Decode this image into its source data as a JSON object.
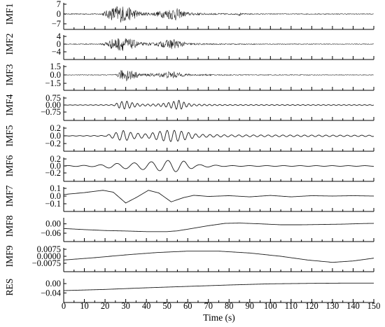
{
  "chart_data": {
    "type": "line",
    "xlabel": "Time (s)",
    "xlim": [
      0,
      150
    ],
    "xticks": [
      "0",
      "10",
      "20",
      "30",
      "40",
      "50",
      "60",
      "70",
      "80",
      "90",
      "100",
      "110",
      "120",
      "130",
      "140",
      "150"
    ],
    "grid": false,
    "panels": [
      {
        "name": "IMF1",
        "ylim": [
          -7,
          7
        ],
        "yticks": [
          "7",
          "0",
          "−7"
        ],
        "pattern": "noise",
        "env": [
          [
            0,
            0.04
          ],
          [
            18,
            0.06
          ],
          [
            24,
            0.75
          ],
          [
            26,
            0.9
          ],
          [
            29,
            0.85
          ],
          [
            33,
            0.6
          ],
          [
            38,
            0.18
          ],
          [
            42,
            0.12
          ],
          [
            47,
            0.35
          ],
          [
            51,
            0.55
          ],
          [
            54,
            0.7
          ],
          [
            57,
            0.35
          ],
          [
            61,
            0.15
          ],
          [
            70,
            0.08
          ],
          [
            84,
            0.06
          ],
          [
            85,
            0.22
          ],
          [
            86,
            0.06
          ],
          [
            100,
            0.04
          ],
          [
            150,
            0.04
          ]
        ]
      },
      {
        "name": "IMF2",
        "ylim": [
          -4,
          4
        ],
        "yticks": [
          "4",
          "0",
          "−4"
        ],
        "pattern": "noise",
        "env": [
          [
            0,
            0.05
          ],
          [
            18,
            0.06
          ],
          [
            24,
            0.75
          ],
          [
            27,
            0.9
          ],
          [
            30,
            0.85
          ],
          [
            34,
            0.55
          ],
          [
            38,
            0.2
          ],
          [
            44,
            0.18
          ],
          [
            49,
            0.5
          ],
          [
            53,
            0.72
          ],
          [
            56,
            0.45
          ],
          [
            60,
            0.15
          ],
          [
            70,
            0.08
          ],
          [
            100,
            0.05
          ],
          [
            150,
            0.04
          ]
        ]
      },
      {
        "name": "IMF3",
        "ylim": [
          -1.5,
          1.5
        ],
        "yticks": [
          "1.5",
          "0.0",
          "−1.5"
        ],
        "pattern": "noise",
        "env": [
          [
            0,
            0.03
          ],
          [
            25,
            0.05
          ],
          [
            28,
            0.6
          ],
          [
            31,
            0.75
          ],
          [
            34,
            0.5
          ],
          [
            37,
            0.15
          ],
          [
            45,
            0.2
          ],
          [
            50,
            0.4
          ],
          [
            53,
            0.45
          ],
          [
            57,
            0.2
          ],
          [
            62,
            0.1
          ],
          [
            80,
            0.05
          ],
          [
            150,
            0.03
          ]
        ]
      },
      {
        "name": "IMF4",
        "ylim": [
          -0.75,
          0.75
        ],
        "yticks": [
          "0.75",
          "0.00",
          "−0.75"
        ],
        "pattern": "wave",
        "period": 2.5,
        "env": [
          [
            0,
            0.02
          ],
          [
            24,
            0.05
          ],
          [
            27,
            0.45
          ],
          [
            30,
            0.6
          ],
          [
            33,
            0.35
          ],
          [
            38,
            0.12
          ],
          [
            45,
            0.15
          ],
          [
            50,
            0.3
          ],
          [
            53,
            0.5
          ],
          [
            56,
            0.7
          ],
          [
            59,
            0.3
          ],
          [
            63,
            0.12
          ],
          [
            80,
            0.06
          ],
          [
            150,
            0.04
          ]
        ]
      },
      {
        "name": "IMF5",
        "ylim": [
          -0.2,
          0.2
        ],
        "yticks": [
          "0.2",
          "0.0",
          "−0.2"
        ],
        "pattern": "wave",
        "period": 3.5,
        "env": [
          [
            0,
            0.02
          ],
          [
            20,
            0.05
          ],
          [
            25,
            0.4
          ],
          [
            29,
            0.7
          ],
          [
            33,
            0.4
          ],
          [
            40,
            0.25
          ],
          [
            47,
            0.6
          ],
          [
            51,
            0.75
          ],
          [
            55,
            0.7
          ],
          [
            60,
            0.45
          ],
          [
            65,
            0.2
          ],
          [
            80,
            0.12
          ],
          [
            120,
            0.1
          ],
          [
            150,
            0.08
          ]
        ]
      },
      {
        "name": "IMF6",
        "ylim": [
          -0.2,
          0.2
        ],
        "yticks": [
          "0.2",
          "0.0",
          "−0.2"
        ],
        "pattern": "wave",
        "period": 8,
        "env": [
          [
            0,
            0.05
          ],
          [
            15,
            0.1
          ],
          [
            24,
            0.35
          ],
          [
            32,
            0.4
          ],
          [
            40,
            0.55
          ],
          [
            47,
            0.7
          ],
          [
            53,
            0.85
          ],
          [
            58,
            0.7
          ],
          [
            64,
            0.2
          ],
          [
            80,
            0.05
          ],
          [
            150,
            0.04
          ]
        ]
      },
      {
        "name": "IMF7",
        "ylim": [
          -0.1,
          0.1
        ],
        "yticks": [
          "0.1",
          "0.0",
          "−0.1"
        ],
        "pattern": "curve",
        "points": [
          [
            0,
            0.02
          ],
          [
            10,
            0.045
          ],
          [
            19,
            0.075
          ],
          [
            24,
            0.05
          ],
          [
            30,
            -0.09
          ],
          [
            35,
            -0.02
          ],
          [
            41,
            0.075
          ],
          [
            46,
            0.04
          ],
          [
            52,
            -0.075
          ],
          [
            58,
            -0.02
          ],
          [
            63,
            0.01
          ],
          [
            70,
            -0.005
          ],
          [
            80,
            0.005
          ],
          [
            90,
            -0.01
          ],
          [
            100,
            0.008
          ],
          [
            110,
            -0.01
          ],
          [
            120,
            0.005
          ],
          [
            130,
            0.0
          ],
          [
            140,
            0.005
          ],
          [
            150,
            0.0
          ]
        ]
      },
      {
        "name": "IMF8",
        "ylim": [
          -0.06,
          0.03
        ],
        "yticks": [
          "0.00",
          "−0.06"
        ],
        "pattern": "curve",
        "points": [
          [
            0,
            -0.03
          ],
          [
            10,
            -0.037
          ],
          [
            20,
            -0.043
          ],
          [
            30,
            -0.046
          ],
          [
            40,
            -0.05
          ],
          [
            50,
            -0.05
          ],
          [
            55,
            -0.045
          ],
          [
            62,
            -0.03
          ],
          [
            70,
            -0.012
          ],
          [
            78,
            0.003
          ],
          [
            85,
            0.005
          ],
          [
            95,
            0.0
          ],
          [
            105,
            -0.006
          ],
          [
            115,
            -0.006
          ],
          [
            125,
            -0.004
          ],
          [
            135,
            -0.002
          ],
          [
            145,
            0.002
          ],
          [
            150,
            0.003
          ]
        ]
      },
      {
        "name": "IMF9",
        "ylim": [
          -0.0075,
          0.0075
        ],
        "yticks": [
          "0.0075",
          "0.0000",
          "−0.0075"
        ],
        "pattern": "curve",
        "points": [
          [
            0,
            -0.004
          ],
          [
            15,
            -0.0015
          ],
          [
            30,
            0.0015
          ],
          [
            45,
            0.004
          ],
          [
            60,
            0.0055
          ],
          [
            75,
            0.0055
          ],
          [
            90,
            0.0035
          ],
          [
            105,
            0.0
          ],
          [
            118,
            -0.004
          ],
          [
            130,
            -0.0065
          ],
          [
            140,
            -0.005
          ],
          [
            150,
            -0.002
          ]
        ]
      },
      {
        "name": "RES",
        "ylim": [
          -0.045,
          0.015
        ],
        "yticks": [
          "0.00",
          "−0.04"
        ],
        "pattern": "curve",
        "points": [
          [
            0,
            -0.03
          ],
          [
            20,
            -0.025
          ],
          [
            40,
            -0.018
          ],
          [
            60,
            -0.012
          ],
          [
            80,
            -0.006
          ],
          [
            100,
            -0.001
          ],
          [
            120,
            0.001
          ],
          [
            135,
            0.002
          ],
          [
            150,
            0.002
          ]
        ]
      }
    ]
  }
}
